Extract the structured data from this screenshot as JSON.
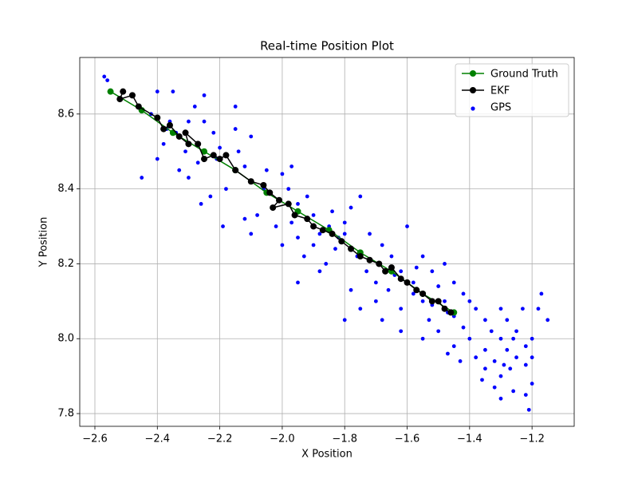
{
  "chart_data": {
    "type": "scatter",
    "title": "Real-time Position Plot",
    "x_label": "X Position",
    "y_label": "Y Position",
    "xlim": [
      -2.6485,
      -1.065
    ],
    "ylim": [
      7.766,
      8.751
    ],
    "xticks": [
      {
        "value": -2.6,
        "label": "−2.6"
      },
      {
        "value": -2.4,
        "label": "−2.4"
      },
      {
        "value": -2.2,
        "label": "−2.2"
      },
      {
        "value": -2.0,
        "label": "−2.0"
      },
      {
        "value": -1.8,
        "label": "−1.8"
      },
      {
        "value": -1.6,
        "label": "−1.6"
      },
      {
        "value": -1.4,
        "label": "−1.4"
      },
      {
        "value": -1.2,
        "label": "−1.2"
      }
    ],
    "yticks": [
      7.8,
      {
        "value": 8,
        "label": "8.0"
      },
      8.2,
      8.4,
      8.6
    ],
    "grid": true,
    "legend": "upper right",
    "series": [
      {
        "name": "Ground Truth",
        "color": "#008000",
        "style": "line",
        "x": [
          -2.55,
          -2.45,
          -2.35,
          -2.25,
          -2.15,
          -2.05,
          -1.95,
          -1.85,
          -1.75,
          -1.65,
          -1.55,
          -1.45
        ],
        "values": [
          8.66,
          8.61,
          8.55,
          8.5,
          8.45,
          8.39,
          8.34,
          8.29,
          8.23,
          8.18,
          8.12,
          8.07
        ]
      },
      {
        "name": "EKF",
        "color": "#000000",
        "style": "line",
        "x": [
          -2.51,
          -2.52,
          -2.48,
          -2.46,
          -2.4,
          -2.38,
          -2.36,
          -2.33,
          -2.3,
          -2.31,
          -2.27,
          -2.25,
          -2.22,
          -2.2,
          -2.18,
          -2.15,
          -2.1,
          -2.06,
          -2.04,
          -2.01,
          -2.03,
          -1.98,
          -1.96,
          -1.92,
          -1.9,
          -1.87,
          -1.84,
          -1.81,
          -1.78,
          -1.75,
          -1.72,
          -1.69,
          -1.67,
          -1.65,
          -1.62,
          -1.6,
          -1.57,
          -1.55,
          -1.52,
          -1.5,
          -1.48,
          -1.46
        ],
        "values": [
          8.66,
          8.64,
          8.65,
          8.62,
          8.59,
          8.56,
          8.57,
          8.54,
          8.52,
          8.55,
          8.52,
          8.48,
          8.49,
          8.48,
          8.49,
          8.45,
          8.42,
          8.41,
          8.39,
          8.37,
          8.35,
          8.36,
          8.33,
          8.32,
          8.3,
          8.29,
          8.28,
          8.26,
          8.24,
          8.22,
          8.21,
          8.2,
          8.18,
          8.19,
          8.16,
          8.15,
          8.13,
          8.12,
          8.1,
          8.1,
          8.08,
          8.07
        ]
      },
      {
        "name": "GPS",
        "color": "#0000ff",
        "style": "scatter",
        "x": [
          -2.57,
          -2.56,
          -2.4,
          -2.35,
          -2.42,
          -2.38,
          -2.4,
          -2.33,
          -2.3,
          -2.45,
          -2.28,
          -2.25,
          -2.22,
          -2.2,
          -2.15,
          -2.1,
          -2.12,
          -2.18,
          -2.23,
          -2.26,
          -2.34,
          -2.31,
          -2.27,
          -2.36,
          -2.19,
          -2.05,
          -2.0,
          -1.97,
          -1.98,
          -2.03,
          -2.08,
          -2.12,
          -2.1,
          -2.02,
          -1.95,
          -1.92,
          -1.9,
          -1.88,
          -1.95,
          -2.0,
          -1.93,
          -1.86,
          -1.83,
          -1.8,
          -1.78,
          -1.75,
          -1.8,
          -1.76,
          -1.73,
          -1.7,
          -1.78,
          -1.8,
          -1.72,
          -1.68,
          -1.65,
          -1.62,
          -1.66,
          -1.7,
          -1.62,
          -1.58,
          -1.6,
          -1.55,
          -1.52,
          -1.5,
          -1.55,
          -1.53,
          -1.5,
          -1.55,
          -1.48,
          -1.45,
          -1.42,
          -1.4,
          -1.45,
          -1.42,
          -1.45,
          -1.47,
          -1.38,
          -1.35,
          -1.33,
          -1.3,
          -1.35,
          -1.32,
          -1.28,
          -1.25,
          -1.27,
          -1.3,
          -1.22,
          -1.2,
          -1.22,
          -1.25,
          -1.28,
          -1.3,
          -1.18,
          -1.15,
          -1.17,
          -1.2,
          -1.22,
          -1.21,
          -1.3,
          -1.32,
          -1.35,
          -1.38,
          -1.4,
          -1.43,
          -1.36,
          -1.26,
          -1.2,
          -1.23,
          -1.26,
          -1.29,
          -1.62,
          -1.88,
          -1.95,
          -1.75,
          -1.68,
          -2.15,
          -2.25,
          -2.06,
          -2.14,
          -2.3,
          -2.37,
          -2.21,
          -1.85,
          -1.82,
          -1.9,
          -1.97,
          -1.84,
          -1.64,
          -1.58,
          -1.57,
          -1.48,
          -1.52,
          -1.47
        ],
        "values": [
          8.7,
          8.69,
          8.66,
          8.66,
          8.6,
          8.52,
          8.48,
          8.45,
          8.43,
          8.43,
          8.62,
          8.58,
          8.55,
          8.51,
          8.56,
          8.54,
          8.46,
          8.4,
          8.38,
          8.36,
          8.55,
          8.5,
          8.47,
          8.58,
          8.3,
          8.45,
          8.44,
          8.46,
          8.4,
          8.35,
          8.33,
          8.32,
          8.28,
          8.3,
          8.36,
          8.38,
          8.33,
          8.28,
          8.27,
          8.25,
          8.22,
          8.2,
          8.24,
          8.31,
          8.35,
          8.38,
          8.28,
          8.22,
          8.18,
          8.15,
          8.13,
          8.05,
          8.28,
          8.25,
          8.22,
          8.18,
          8.13,
          8.1,
          8.08,
          8.12,
          8.3,
          8.22,
          8.18,
          8.14,
          8.1,
          8.05,
          8.02,
          8.0,
          8.2,
          8.15,
          8.12,
          8.1,
          8.06,
          8.03,
          7.98,
          7.96,
          8.08,
          8.05,
          8.02,
          8.0,
          7.97,
          7.94,
          7.97,
          7.95,
          7.92,
          7.9,
          7.98,
          7.95,
          7.93,
          8.02,
          8.05,
          8.08,
          8.08,
          8.05,
          8.12,
          7.88,
          7.85,
          7.81,
          7.84,
          7.87,
          7.92,
          7.95,
          8.0,
          7.94,
          7.89,
          7.86,
          8.0,
          8.08,
          8.0,
          7.93,
          8.02,
          8.18,
          8.15,
          8.08,
          8.05,
          8.62,
          8.65,
          8.4,
          8.5,
          8.58,
          8.56,
          8.48,
          8.3,
          8.27,
          8.25,
          8.31,
          8.34,
          8.17,
          8.15,
          8.19,
          8.1,
          8.09,
          8.07
        ]
      }
    ]
  }
}
